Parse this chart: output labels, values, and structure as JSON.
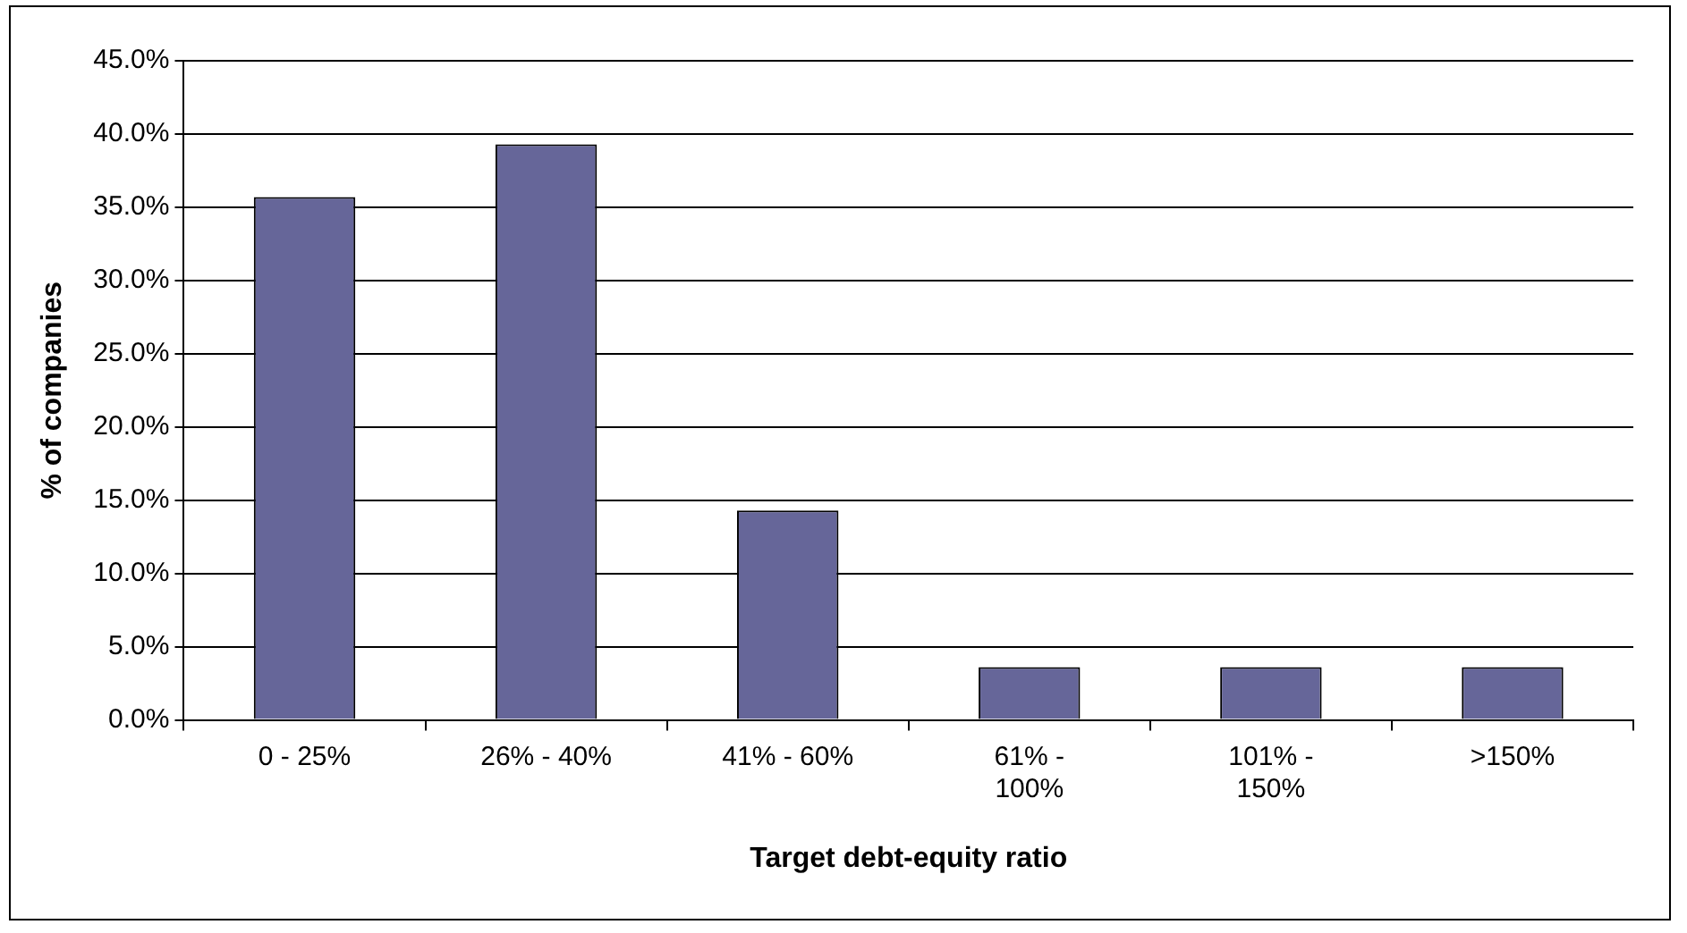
{
  "chart_data": {
    "type": "bar",
    "xlabel": "Target debt-equity ratio",
    "ylabel": "% of companies",
    "categories": [
      "0 - 25%",
      "26% - 40%",
      "41% - 60%",
      "61% -\n100%",
      "101% -\n150%",
      ">150%"
    ],
    "values": [
      35.7,
      39.3,
      14.3,
      3.6,
      3.6,
      3.6
    ],
    "color": "#666699",
    "ylim": [
      0,
      45
    ],
    "yticks": [
      {
        "value": 0,
        "label": "0.0%"
      },
      {
        "value": 5,
        "label": "5.0%"
      },
      {
        "value": 10,
        "label": "10.0%"
      },
      {
        "value": 15,
        "label": "15.0%"
      },
      {
        "value": 20,
        "label": "20.0%"
      },
      {
        "value": 25,
        "label": "25.0%"
      },
      {
        "value": 30,
        "label": "30.0%"
      },
      {
        "value": 35,
        "label": "35.0%"
      },
      {
        "value": 40,
        "label": "40.0%"
      },
      {
        "value": 45,
        "label": "45.0%"
      }
    ],
    "grid": "y"
  }
}
